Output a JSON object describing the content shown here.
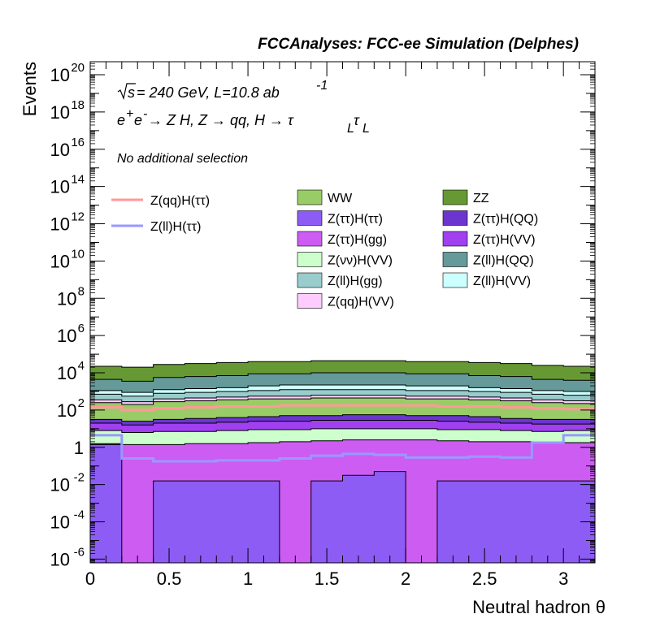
{
  "chart_data": {
    "type": "area",
    "title": "FCCAnalyses: FCC-ee Simulation (Delphes)",
    "xlabel": "Neutral hadron θ",
    "ylabel": "Events",
    "xlim": [
      0,
      3.2
    ],
    "ylim_log10": [
      -6.2,
      20.7
    ],
    "log_y": true,
    "grid": false,
    "legend_position": "top",
    "annotations": {
      "energy_prefix": "s",
      "energy_text": " = 240 GeV, L=10.8 ab",
      "energy_sup": "-1",
      "process": "e⁺e⁻ → Z H, Z → qq, H → τ_L τ_L",
      "process_parts": {
        "a": "e",
        "a_sup1": "+",
        "b": "e",
        "b_sup": "-",
        "c": " → Z H, Z  → qq, H  → τ",
        "d_sub": "L",
        "e": "τ",
        "f_sub": "L"
      },
      "selection": "No additional selection"
    },
    "x_ticks": [
      "0",
      "0.5",
      "1",
      "1.5",
      "2",
      "2.5",
      "3"
    ],
    "x_tick_values": [
      0,
      0.5,
      1,
      1.5,
      2,
      2.5,
      3
    ],
    "y_ticks": [
      {
        "base": "10",
        "exp": "-6",
        "log": -6
      },
      {
        "base": "10",
        "exp": "-4",
        "log": -4
      },
      {
        "base": "10",
        "exp": "-2",
        "log": -2
      },
      {
        "base": "1",
        "exp": "",
        "log": 0
      },
      {
        "base": "10",
        "exp": "2",
        "log": 2
      },
      {
        "base": "10",
        "exp": "4",
        "log": 4
      },
      {
        "base": "10",
        "exp": "6",
        "log": 6
      },
      {
        "base": "10",
        "exp": "8",
        "log": 8
      },
      {
        "base": "10",
        "exp": "10",
        "log": 10
      },
      {
        "base": "10",
        "exp": "12",
        "log": 12
      },
      {
        "base": "10",
        "exp": "14",
        "log": 14
      },
      {
        "base": "10",
        "exp": "16",
        "log": 16
      },
      {
        "base": "10",
        "exp": "18",
        "log": 18
      },
      {
        "base": "10",
        "exp": "20",
        "log": 20
      }
    ],
    "bin_edges": [
      0,
      0.2,
      0.4,
      0.6,
      0.8,
      1.0,
      1.2,
      1.4,
      1.6,
      1.8,
      2.0,
      2.2,
      2.4,
      2.6,
      2.8,
      3.0,
      3.2
    ],
    "stack_log_tops": [
      {
        "name": "Z(ττ)H(ττ)",
        "color": "#8c5cf5",
        "values": [
          0.15,
          -6.3,
          -1.8,
          -1.8,
          -1.8,
          -1.8,
          -6.3,
          -1.8,
          -1.5,
          -1.3,
          -6.3,
          -1.8,
          -1.8,
          -1.8,
          -1.8,
          -1.8
        ]
      },
      {
        "name": "Z(ττ)H(gg)",
        "color": "#cc5cf2",
        "values": [
          0.2,
          0.15,
          0.15,
          0.2,
          0.2,
          0.25,
          0.3,
          0.35,
          0.4,
          0.4,
          0.4,
          0.35,
          0.3,
          0.3,
          0.25,
          0.25
        ]
      },
      {
        "name": "Z(νν)H(VV)",
        "color": "#ccffcc",
        "values": [
          0.9,
          0.8,
          0.85,
          0.85,
          0.9,
          0.95,
          0.95,
          1.0,
          1.0,
          1.0,
          1.0,
          0.95,
          0.95,
          0.9,
          0.85,
          0.9
        ]
      },
      {
        "name": "Z(ττ)H(VV)",
        "color": "#a040f0",
        "values": [
          1.3,
          1.2,
          1.3,
          1.3,
          1.35,
          1.4,
          1.4,
          1.45,
          1.45,
          1.45,
          1.45,
          1.4,
          1.35,
          1.3,
          1.25,
          1.25
        ]
      },
      {
        "name": "Z(ττ)H(QQ)",
        "color": "#6c35d0",
        "values": [
          1.5,
          1.4,
          1.5,
          1.55,
          1.6,
          1.65,
          1.7,
          1.7,
          1.75,
          1.75,
          1.7,
          1.7,
          1.65,
          1.55,
          1.5,
          1.5
        ]
      },
      {
        "name": "WW",
        "color": "#99cc66",
        "values": [
          2.4,
          2.3,
          2.45,
          2.5,
          2.55,
          2.6,
          2.6,
          2.65,
          2.65,
          2.65,
          2.6,
          2.6,
          2.55,
          2.5,
          2.4,
          2.35
        ]
      },
      {
        "name": "Z(qq)H(VV)",
        "color": "#ffccff",
        "values": [
          2.55,
          2.45,
          2.6,
          2.65,
          2.7,
          2.75,
          2.75,
          2.8,
          2.8,
          2.8,
          2.75,
          2.75,
          2.7,
          2.65,
          2.55,
          2.5
        ]
      },
      {
        "name": "Z(ll)H(gg)",
        "color": "#99cccc",
        "values": [
          2.85,
          2.75,
          2.9,
          2.95,
          3.0,
          3.05,
          3.1,
          3.1,
          3.1,
          3.1,
          3.05,
          3.05,
          3.0,
          2.95,
          2.85,
          2.8
        ]
      },
      {
        "name": "Z(ll)H(VV)",
        "color": "#ccffff",
        "values": [
          3.05,
          2.95,
          3.1,
          3.15,
          3.2,
          3.3,
          3.35,
          3.35,
          3.35,
          3.35,
          3.3,
          3.3,
          3.2,
          3.15,
          3.05,
          3.0
        ]
      },
      {
        "name": "Z(ll)H(QQ)",
        "color": "#669999",
        "values": [
          3.65,
          3.55,
          3.75,
          3.8,
          3.85,
          3.95,
          3.95,
          4.0,
          4.0,
          4.0,
          3.95,
          3.95,
          3.85,
          3.8,
          3.65,
          3.6
        ]
      },
      {
        "name": "ZZ",
        "color": "#669933",
        "values": [
          4.35,
          4.3,
          4.45,
          4.5,
          4.55,
          4.6,
          4.6,
          4.65,
          4.65,
          4.65,
          4.6,
          4.6,
          4.55,
          4.5,
          4.4,
          4.35
        ]
      }
    ],
    "line_series": [
      {
        "name": "Z(qq)H(ττ)",
        "color": "#ff9999",
        "values": [
          2.15,
          2.0,
          2.1,
          2.15,
          2.2,
          2.2,
          2.25,
          2.25,
          2.25,
          2.25,
          2.25,
          2.2,
          2.2,
          2.15,
          2.1,
          2.05
        ]
      },
      {
        "name": "Z(ll)H(ττ)",
        "color": "#9999ff",
        "values": [
          0.65,
          -0.6,
          -0.75,
          -0.75,
          -0.7,
          -0.7,
          -0.6,
          -0.45,
          -0.35,
          -0.4,
          -0.55,
          -0.55,
          -0.5,
          -0.55,
          0.25,
          0.65
        ]
      }
    ],
    "legend_lines": [
      "Z(qq)H(ττ)",
      "Z(ll)H(ττ)"
    ],
    "legend_boxes": [
      {
        "label": "WW",
        "color": "#99cc66"
      },
      {
        "label": "ZZ",
        "color": "#669933"
      },
      {
        "label": "Z(ττ)H(ττ)",
        "color": "#8c5cf5"
      },
      {
        "label": "Z(ττ)H(QQ)",
        "color": "#6c35d0"
      },
      {
        "label": "Z(ττ)H(gg)",
        "color": "#cc5cf2"
      },
      {
        "label": "Z(ττ)H(VV)",
        "color": "#a040f0"
      },
      {
        "label": "Z(νν)H(VV)",
        "color": "#ccffcc"
      },
      {
        "label": "Z(ll)H(QQ)",
        "color": "#669999"
      },
      {
        "label": "Z(ll)H(gg)",
        "color": "#99cccc"
      },
      {
        "label": "Z(ll)H(VV)",
        "color": "#ccffff"
      },
      {
        "label": "Z(qq)H(VV)",
        "color": "#ffccff"
      }
    ]
  }
}
